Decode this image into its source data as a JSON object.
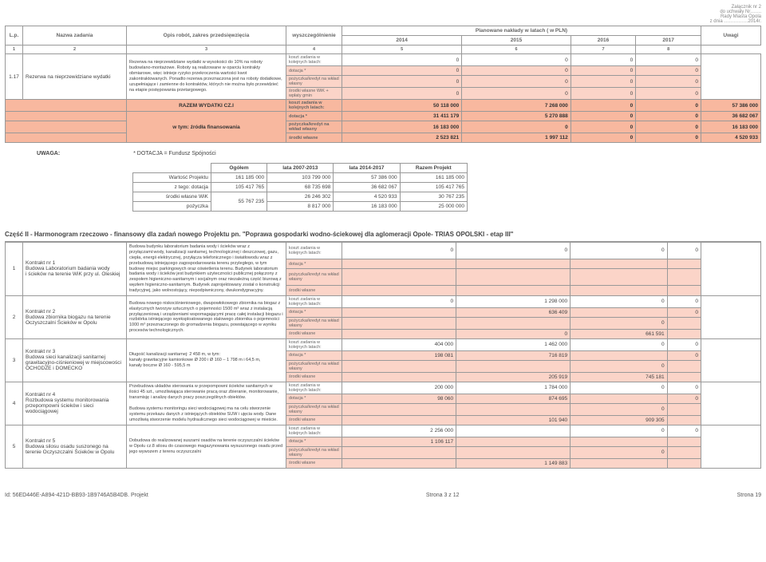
{
  "attachment": {
    "l1": "Załącznik nr 2",
    "l2": "do uchwały Nr…….",
    "l3": "Rady Miasta Opola",
    "l4": "z dnia ……………2014r."
  },
  "thead": {
    "lp": "L.p.",
    "name": "Nazwa zadania",
    "scope": "Opis robót, zakres przedsięwzięcia",
    "spec": "wyszczególnienie",
    "plan": "Planowane nakłady w latach ( w PLN)",
    "remarks": "Uwagi",
    "y14": "2014",
    "y15": "2015",
    "y16": "2016",
    "y17": "2017",
    "c1": "1",
    "c2": "2",
    "c3": "3",
    "c4": "4",
    "c5": "5",
    "c6": "6",
    "c7": "7",
    "c8": "8"
  },
  "sub": {
    "koszt": "koszt zadania w kolejnych latach:",
    "dot": "dotacja *",
    "poz": "pożyczka/kredyt na wkład własny",
    "wik": "środki własne WiK + wpłaty gmin",
    "wlasne": "środki własne"
  },
  "r117": {
    "lp": "1.17",
    "name": "Rezerwa na nieprzewidziane wydatki",
    "desc": "Rezerwa na nieprzewidziane wydatki w wysokości do 10% na roboty budowlano-montażowe. Roboty są realizowane w oparciu kontrakty obmiarowe, więc istnieje ryzyko przekroczenia wartości kwot zakontraktowanych. Ponadto rezerwa przeznaczona jest na roboty dodatkowe, uzupełniające i zamienne do kontraktów, których nie można było przewidzieć na etapie postępowania przetargowego."
  },
  "total": {
    "title": "RAZEM WYDATKI CZ.I",
    "finsrc": "w tym: źródła finansowania",
    "koszt": [
      "50 118 000",
      "7 268 000",
      "0",
      "0",
      "57 386 000"
    ],
    "dot": [
      "31 411 179",
      "5 270 888",
      "0",
      "0",
      "36 682 067"
    ],
    "poz": [
      "16 183 000",
      "0",
      "0",
      "0",
      "16 183 000"
    ],
    "wlasne": [
      "2 523 821",
      "1 997 112",
      "0",
      "0",
      "4 520 933"
    ]
  },
  "note": {
    "label": "UWAGA:",
    "text": "* DOTACJA = Fundusz Spójności"
  },
  "st": {
    "h": {
      "ogol": "Ogółem",
      "l0713": "lata 2007-2013",
      "l1417": "lata 2014-2017",
      "razem": "Razem Projekt"
    },
    "r": [
      {
        "k": "Wartość Projektu",
        "og": "161 185 000",
        "a": "103 799 000",
        "b": "57 386 000",
        "c": "161 185 000"
      },
      {
        "k": "z tego:            dotacja",
        "og": "105 417 765",
        "a": "68 735 698",
        "b": "36 682 067",
        "c": "105 417 765"
      },
      {
        "k": "środki własne WiK",
        "og": "55 767 235",
        "a": "26 246 302",
        "b": "4 520 933",
        "c": "30 767 235"
      },
      {
        "k": "pożyczka",
        "og": "",
        "a": "8 817 000",
        "b": "16 183 000",
        "c": "25 000 000"
      }
    ]
  },
  "sec2": "Część II - Harmonogram rzeczowo - finansowy dla zadań nowego Projektu pn. \"Poprawa gospodarki wodno-ściekowej dla aglomeracji Opole- TRIAS OPOLSKI - etap III\"",
  "k": [
    {
      "lp": "1",
      "name": "Kontrakt nr 1\nBudowa Laboratorium badania wody\ni ścieków na terenie WiK przy ul. Oleskiej",
      "desc": "Budowa budynku laboratorium badania wody i ścieków wraz z przyłączami:wody, kanalizacji sanitarnej, technologicznej i deszczowej, gazu, ciepła, energii elektrycznej, przyłącza telefonicznego i światłowodu wraz z przebudową istniejącego zagospodarowania terenu przyległego, w tym budowę miejsc parkingowych oraz oświetlenia terenu. Budynek laboratorium badania wody i ścieków jest budynkiem użyteczności publicznej połączony z zespołem higieniczno-sanitarnym i socjalnym oraz niezależną część biurową z węzłem higieniczno-sanitarnym. Budynek zaprojektowany został o konstrukcji tradycyjnej, jako wolnostojący, niepodpiwniczony, dwukondygnacyjny.",
      "koszt": [
        "0",
        "0",
        "0",
        "0"
      ],
      "dot": [
        "",
        "",
        "",
        ""
      ],
      "poz": [
        "",
        "",
        "",
        ""
      ],
      "wl": [
        "",
        "",
        "",
        ""
      ]
    },
    {
      "lp": "2",
      "name": "Kontrakt nr 2\nBudowa zbiornika biogazu na terenie Oczyszczalni Ścieków w Opolu",
      "desc": "Budowa nowego niskociśnieniowego, dwupowłokowego zbiornika na biogaz z elastycznych tworzyw sztucznych o pojemności 1500 m³ wraz z instalacją przyłączeniową i urządzeniami wspomagającymi pracę całej instalacji biogazu i rozbiórka istniejącego wyeksploatowanego stalowego zbiornika o pojemności 1000 m³ przeznaczonego do gromadzenia biogazu, powstającego w wyniku procesów technologicznych.",
      "koszt": [
        "0",
        "1 298 000",
        "0",
        "0"
      ],
      "dot": [
        "",
        "636 409",
        "",
        "0"
      ],
      "poz": [
        "",
        "",
        "0",
        ""
      ],
      "wl": [
        "",
        "0",
        "661 591",
        ""
      ]
    },
    {
      "lp": "3",
      "name": "Kontrakt nr 3\nBudowa sieci kanalizacji sanitarnej grawitacyjno-ciśnieniowej w miejscowości OCHODZE i DOMECKO",
      "desc": "Długość kanalizacji sanitarnej: 2 458 m, w tym:\nkanały grawitacyjne kamionkowe Ø 200 i Ø 160 – 1 798 m i 64,5 m,\nkanały boczne Ø 160 - 595,5 m",
      "koszt": [
        "404 000",
        "1 462 000",
        "0",
        "0"
      ],
      "dot": [
        "198 081",
        "716 819",
        "",
        "0"
      ],
      "poz": [
        "",
        "",
        "0",
        ""
      ],
      "wl": [
        "",
        "205 919",
        "745 181",
        ""
      ]
    },
    {
      "lp": "4",
      "name": "Kontrakt nr 4\nRozbudowa systemu monitorowania przepompowni ścieków i sieci wodociągowej",
      "desc": "Przebudowa układów sterowania w przepompowni ścieków sanitarnych w ilości 45 szt., umożliwiająca sterowanie pracą oraz zbieranie, monitorowanie, transmisję i analizę danych pracy poszczególnych obiektów.\n\nBudowa systemu monitoringu sieci wodociągowej ma na celu stworzenie systemu przekazu danych z istniejących obiektów SUW i ujęcia wody. Dane umożliwią stworzenie modelu hydraulicznego sieci wodociągowej w mieście.",
      "koszt": [
        "200 000",
        "1 784 000",
        "0",
        "0"
      ],
      "dot": [
        "98 060",
        "874 695",
        "",
        "0"
      ],
      "poz": [
        "",
        "",
        "0",
        ""
      ],
      "wl": [
        "",
        "101 940",
        "909 305",
        ""
      ]
    },
    {
      "lp": "5",
      "name": "Kontrakt nr 5\nBudowa silosu osadu suszonego na terenie Oczyszczalni Ścieków w Opolu",
      "desc": "Dobudowa do realizowanej suszarni osadów na terenie oczyszczalni ścieków w Opolu cz.8 silosu do czasowego magazynowania wysuszonego osadu przed jego wywozem z terenu oczyszczalni",
      "koszt": [
        "2 256 000",
        "",
        "0",
        "0"
      ],
      "dot": [
        "1 106 117",
        "",
        "",
        ""
      ],
      "poz": [
        "",
        "",
        "0",
        ""
      ],
      "wl": [
        "",
        "1 149 883",
        "",
        ""
      ]
    }
  ],
  "foot": {
    "id": "Id: 56ED446E-A894-421D-BB93-1B9746A5B4DB. Projekt",
    "pg": "Strona 3 z 12",
    "sp": "Strona 19"
  }
}
